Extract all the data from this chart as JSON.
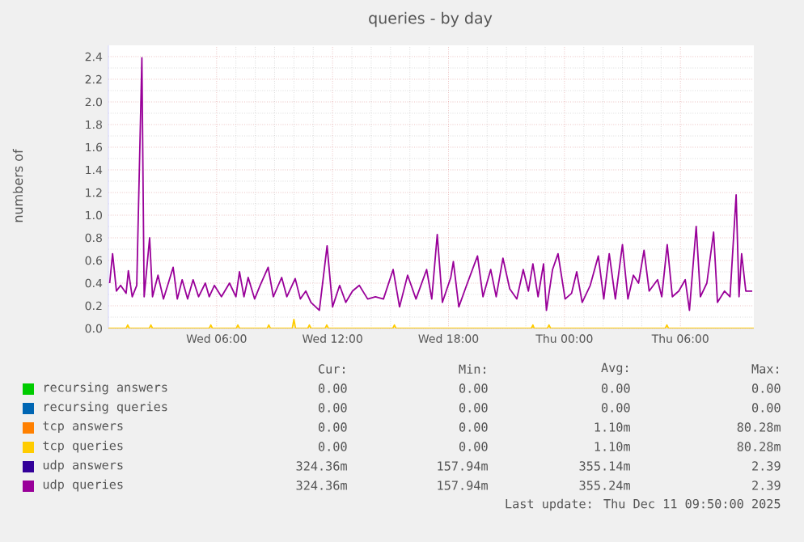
{
  "chart_data": {
    "type": "line",
    "title": "queries - by day",
    "ylabel": "numbers of",
    "xlim": [
      "2025-12-10T00:24",
      "2025-12-11T09:48"
    ],
    "ylim": [
      0,
      2.5
    ],
    "xticks": [
      {
        "value": "2025-12-10T06:00",
        "label": "Wed 06:00"
      },
      {
        "value": "2025-12-10T12:00",
        "label": "Wed 12:00"
      },
      {
        "value": "2025-12-10T18:00",
        "label": "Wed 18:00"
      },
      {
        "value": "2025-12-11T00:00",
        "label": "Thu 00:00"
      },
      {
        "value": "2025-12-11T06:00",
        "label": "Thu 06:00"
      }
    ],
    "yticks": [
      {
        "value": 0,
        "label": "0.0"
      },
      {
        "value": 0.2,
        "label": "0.2"
      },
      {
        "value": 0.4,
        "label": "0.4"
      },
      {
        "value": 0.6,
        "label": "0.6"
      },
      {
        "value": 0.8,
        "label": "0.8"
      },
      {
        "value": 1.0,
        "label": "1.0"
      },
      {
        "value": 1.2,
        "label": "1.2"
      },
      {
        "value": 1.4,
        "label": "1.4"
      },
      {
        "value": 1.6,
        "label": "1.6"
      },
      {
        "value": 1.8,
        "label": "1.8"
      },
      {
        "value": 2.0,
        "label": "2.0"
      },
      {
        "value": 2.2,
        "label": "2.2"
      },
      {
        "value": 2.4,
        "label": "2.4"
      }
    ],
    "grid": true,
    "legend": "bottom",
    "series": [
      {
        "name": "recursing answers",
        "color": "#00cc00"
      },
      {
        "name": "recursing queries",
        "color": "#0066b3"
      },
      {
        "name": "tcp answers",
        "color": "#ff8000"
      },
      {
        "name": "tcp queries",
        "color": "#ffcc00",
        "x": [
          "2025-12-10T00:24",
          "2025-12-10T01:19",
          "2025-12-10T01:24",
          "2025-12-10T01:29",
          "2025-12-10T02:31",
          "2025-12-10T02:36",
          "2025-12-10T02:41",
          "2025-12-10T05:37",
          "2025-12-10T05:42",
          "2025-12-10T05:47",
          "2025-12-10T07:01",
          "2025-12-10T07:06",
          "2025-12-10T07:11",
          "2025-12-10T08:37",
          "2025-12-10T08:42",
          "2025-12-10T08:47",
          "2025-12-10T09:55",
          "2025-12-10T10:00",
          "2025-12-10T10:05",
          "2025-12-10T10:43",
          "2025-12-10T10:48",
          "2025-12-10T10:53",
          "2025-12-10T11:37",
          "2025-12-10T11:42",
          "2025-12-10T11:47",
          "2025-12-10T15:07",
          "2025-12-10T15:12",
          "2025-12-10T15:17",
          "2025-12-10T22:17",
          "2025-12-10T22:22",
          "2025-12-10T22:26",
          "2025-12-10T23:07",
          "2025-12-10T23:12",
          "2025-12-10T23:17",
          "2025-12-11T05:13",
          "2025-12-11T05:18",
          "2025-12-11T05:23",
          "2025-12-11T09:48"
        ],
        "values": [
          0,
          0,
          0.03,
          0,
          0,
          0.03,
          0,
          0,
          0.03,
          0,
          0,
          0.03,
          0,
          0,
          0.03,
          0,
          0,
          0.08,
          0,
          0,
          0.03,
          0,
          0,
          0.03,
          0,
          0,
          0.03,
          0,
          0,
          0.03,
          0,
          0,
          0.03,
          0,
          0,
          0.03,
          0,
          0
        ]
      },
      {
        "name": "udp answers",
        "color": "#330099"
      },
      {
        "name": "udp queries",
        "color": "#990099",
        "x": [
          "2025-12-10T00:28",
          "2025-12-10T00:37",
          "2025-12-10T00:49",
          "2025-12-10T01:02",
          "2025-12-10T01:19",
          "2025-12-10T01:26",
          "2025-12-10T01:38",
          "2025-12-10T01:52",
          "2025-12-10T02:08",
          "2025-12-10T02:15",
          "2025-12-10T02:32",
          "2025-12-10T02:41",
          "2025-12-10T02:58",
          "2025-12-10T03:15",
          "2025-12-10T03:28",
          "2025-12-10T03:45",
          "2025-12-10T03:58",
          "2025-12-10T04:13",
          "2025-12-10T04:30",
          "2025-12-10T04:47",
          "2025-12-10T05:04",
          "2025-12-10T05:25",
          "2025-12-10T05:37",
          "2025-12-10T05:53",
          "2025-12-10T06:15",
          "2025-12-10T06:40",
          "2025-12-10T07:00",
          "2025-12-10T07:11",
          "2025-12-10T07:25",
          "2025-12-10T07:38",
          "2025-12-10T07:58",
          "2025-12-10T08:15",
          "2025-12-10T08:40",
          "2025-12-10T08:56",
          "2025-12-10T09:22",
          "2025-12-10T09:38",
          "2025-12-10T10:04",
          "2025-12-10T10:20",
          "2025-12-10T10:37",
          "2025-12-10T10:53",
          "2025-12-10T11:19",
          "2025-12-10T11:43",
          "2025-12-10T12:00",
          "2025-12-10T12:22",
          "2025-12-10T12:41",
          "2025-12-10T13:02",
          "2025-12-10T13:23",
          "2025-12-10T13:49",
          "2025-12-10T14:13",
          "2025-12-10T14:38",
          "2025-12-10T15:08",
          "2025-12-10T15:28",
          "2025-12-10T15:53",
          "2025-12-10T16:19",
          "2025-12-10T16:52",
          "2025-12-10T17:08",
          "2025-12-10T17:25",
          "2025-12-10T17:41",
          "2025-12-10T18:07",
          "2025-12-10T18:15",
          "2025-12-10T18:32",
          "2025-12-10T18:56",
          "2025-12-10T19:30",
          "2025-12-10T19:47",
          "2025-12-10T20:11",
          "2025-12-10T20:28",
          "2025-12-10T20:49",
          "2025-12-10T21:10",
          "2025-12-10T21:32",
          "2025-12-10T21:52",
          "2025-12-10T22:08",
          "2025-12-10T22:22",
          "2025-12-10T22:38",
          "2025-12-10T22:55",
          "2025-12-10T23:04",
          "2025-12-10T23:23",
          "2025-12-10T23:40",
          "2025-12-11T00:02",
          "2025-12-11T00:22",
          "2025-12-11T00:38",
          "2025-12-11T00:55",
          "2025-12-11T01:20",
          "2025-12-11T01:45",
          "2025-12-11T02:02",
          "2025-12-11T02:19",
          "2025-12-11T02:38",
          "2025-12-11T03:00",
          "2025-12-11T03:17",
          "2025-12-11T03:34",
          "2025-12-11T03:50",
          "2025-12-11T04:07",
          "2025-12-11T04:23",
          "2025-12-11T04:49",
          "2025-12-11T05:02",
          "2025-12-11T05:19",
          "2025-12-11T05:35",
          "2025-12-11T05:55",
          "2025-12-11T06:15",
          "2025-12-11T06:28",
          "2025-12-11T06:49",
          "2025-12-11T07:02",
          "2025-12-11T07:22",
          "2025-12-11T07:43",
          "2025-12-11T07:55",
          "2025-12-11T08:17",
          "2025-12-11T08:34",
          "2025-12-11T08:53",
          "2025-12-11T09:02",
          "2025-12-11T09:10",
          "2025-12-11T09:23",
          "2025-12-11T09:43"
        ],
        "values": [
          0.4,
          0.66,
          0.33,
          0.38,
          0.31,
          0.51,
          0.28,
          0.38,
          2.39,
          0.28,
          0.8,
          0.28,
          0.47,
          0.26,
          0.38,
          0.54,
          0.26,
          0.43,
          0.26,
          0.43,
          0.28,
          0.4,
          0.28,
          0.38,
          0.28,
          0.4,
          0.28,
          0.5,
          0.28,
          0.45,
          0.26,
          0.38,
          0.54,
          0.28,
          0.45,
          0.28,
          0.44,
          0.26,
          0.33,
          0.23,
          0.16,
          0.73,
          0.19,
          0.38,
          0.23,
          0.33,
          0.38,
          0.26,
          0.28,
          0.26,
          0.52,
          0.19,
          0.47,
          0.26,
          0.52,
          0.26,
          0.83,
          0.23,
          0.45,
          0.59,
          0.19,
          0.38,
          0.64,
          0.28,
          0.52,
          0.28,
          0.62,
          0.35,
          0.26,
          0.52,
          0.33,
          0.57,
          0.28,
          0.57,
          0.16,
          0.52,
          0.66,
          0.26,
          0.31,
          0.5,
          0.23,
          0.38,
          0.64,
          0.26,
          0.66,
          0.26,
          0.74,
          0.26,
          0.47,
          0.4,
          0.69,
          0.33,
          0.43,
          0.28,
          0.74,
          0.28,
          0.33,
          0.43,
          0.16,
          0.9,
          0.28,
          0.4,
          0.85,
          0.23,
          0.33,
          0.28,
          1.18,
          0.28,
          0.66,
          0.33,
          0.33
        ]
      }
    ],
    "annotations": [
      "Cur:",
      "Min:",
      "Avg:",
      "Max:",
      "0.00",
      "0.00",
      "0.00",
      "0.00",
      "0.00",
      "0.00",
      "0.00",
      "0.00",
      "0.00",
      "0.00",
      "1.10m",
      "80.28m",
      "0.00",
      "0.00",
      "1.10m",
      "80.28m",
      "324.36m",
      "157.94m",
      "355.14m",
      "2.39",
      "324.36m",
      "157.94m",
      "355.24m",
      "2.39",
      "Last update: Thu Dec 11 09:50:00 2025"
    ]
  }
}
